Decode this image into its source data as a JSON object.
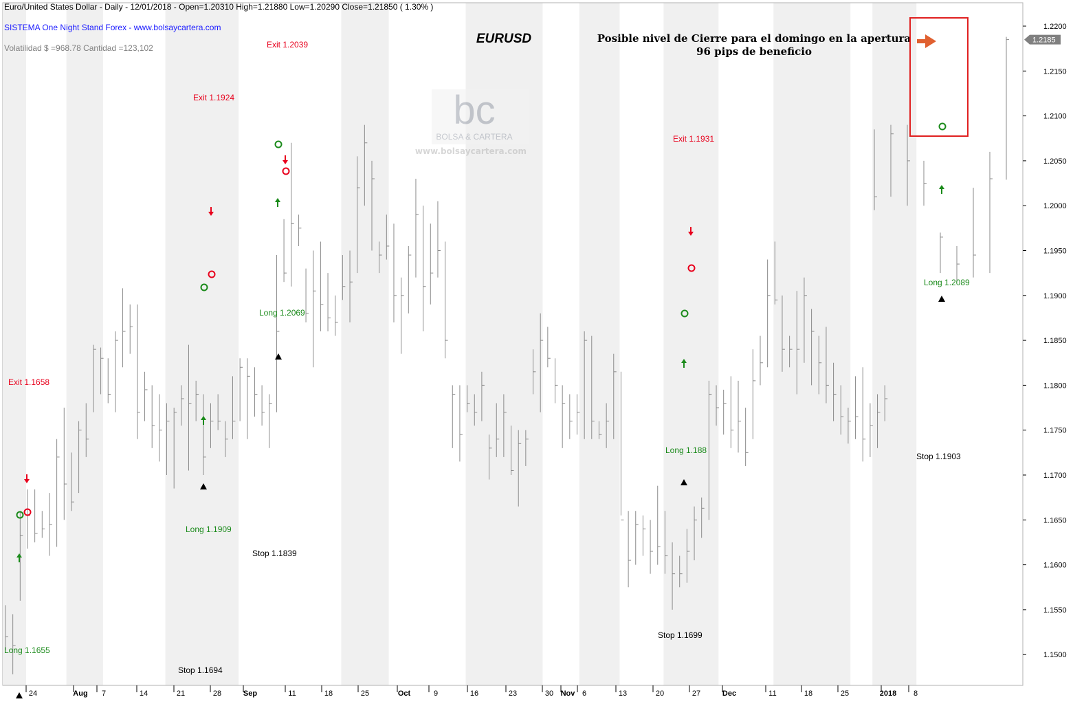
{
  "header": {
    "line1": "Euro/United States Dollar - Daily - 12/01/2018 -   Open=1.20310   High=1.21880   Low=1.20290   Close=1.21850   ( 1.30% )",
    "line2": "SISTEMA One Night Stand Forex  -  www.bolsaycartera.com",
    "line3": "Volatilidad $ =968.78   Cantidad =123,102"
  },
  "watermark": {
    "logo": "bc",
    "name": "BOLSA & CARTERA",
    "url": "www.bolsaycartera.com"
  },
  "colors": {
    "bar": "#8a8a8a",
    "band": "#f0f0f0",
    "long": "#1a8a1a",
    "exit": "#e8001c",
    "trade_line": "#1f1f6e",
    "highlight_box": "#e02020",
    "big_arrow": "#e06030",
    "header_blue": "#1a1aff"
  },
  "chart_data": {
    "type": "ohlc",
    "title": "EURUSD",
    "subtitle_line1": "Posible nivel de Cierre para el domingo en la apertura",
    "subtitle_line2": "96 pips de beneficio",
    "y_range": [
      1.1468,
      1.221
    ],
    "y_ticks": [
      "1.2200",
      "1.2150",
      "1.2100",
      "1.2050",
      "1.2000",
      "1.1950",
      "1.1900",
      "1.1850",
      "1.1800",
      "1.1750",
      "1.1700",
      "1.1650",
      "1.1600",
      "1.1550",
      "1.1500"
    ],
    "last_price_label": "1.2185",
    "x_labels": [
      {
        "i": 6,
        "text": "24"
      },
      {
        "i": 18,
        "text": "Aug"
      },
      {
        "i": 24,
        "text": "7"
      },
      {
        "i": 35,
        "text": "14"
      },
      {
        "i": 46,
        "text": "21"
      },
      {
        "i": 57,
        "text": "28"
      },
      {
        "i": 62,
        "text": "Sep"
      },
      {
        "i": 73,
        "text": "11"
      },
      {
        "i": 84,
        "text": "18"
      },
      {
        "i": 95,
        "text": "25"
      },
      {
        "i": 105,
        "text": "Oct"
      },
      {
        "i": 114,
        "text": "9"
      },
      {
        "i": 125,
        "text": "16"
      },
      {
        "i": 136,
        "text": "23"
      },
      {
        "i": 147,
        "text": "30"
      },
      {
        "i": 152,
        "text": "Nov"
      },
      {
        "i": 157,
        "text": "6"
      },
      {
        "i": 168,
        "text": "13"
      },
      {
        "i": 179,
        "text": "20"
      },
      {
        "i": 190,
        "text": "27"
      },
      {
        "i": 195,
        "text": "Dec"
      },
      {
        "i": 209,
        "text": "11"
      },
      {
        "i": 220,
        "text": "18"
      },
      {
        "i": 231,
        "text": "25"
      },
      {
        "i": 241,
        "text": "2018"
      },
      {
        "i": 249,
        "text": "8"
      }
    ],
    "bands": [
      [
        0,
        6
      ],
      [
        17,
        27
      ],
      [
        44,
        64
      ],
      [
        92,
        105
      ],
      [
        126,
        147
      ],
      [
        157,
        168
      ],
      [
        180,
        195
      ],
      [
        210,
        231
      ],
      [
        237,
        249
      ]
    ],
    "ohlc": [
      {
        "i": 0,
        "h": 1.1555,
        "l": 1.1505,
        "c": 1.152
      },
      {
        "i": 2,
        "h": 1.1545,
        "l": 1.1478,
        "c": 1.151
      },
      {
        "i": 4,
        "h": 1.166,
        "l": 1.156,
        "c": 1.1633
      },
      {
        "i": 6,
        "h": 1.1684,
        "l": 1.1618,
        "c": 1.1655
      },
      {
        "i": 8,
        "h": 1.1684,
        "l": 1.1625,
        "c": 1.1635
      },
      {
        "i": 10,
        "h": 1.166,
        "l": 1.163,
        "c": 1.164
      },
      {
        "i": 12,
        "h": 1.168,
        "l": 1.161,
        "c": 1.1645
      },
      {
        "i": 14,
        "h": 1.174,
        "l": 1.162,
        "c": 1.172
      },
      {
        "i": 16,
        "h": 1.1775,
        "l": 1.165,
        "c": 1.169
      },
      {
        "i": 18,
        "h": 1.1725,
        "l": 1.166,
        "c": 1.167
      },
      {
        "i": 20,
        "h": 1.176,
        "l": 1.168,
        "c": 1.175
      },
      {
        "i": 22,
        "h": 1.178,
        "l": 1.172,
        "c": 1.174
      },
      {
        "i": 24,
        "h": 1.1845,
        "l": 1.177,
        "c": 1.184
      },
      {
        "i": 26,
        "h": 1.1842,
        "l": 1.179,
        "c": 1.183
      },
      {
        "i": 28,
        "h": 1.183,
        "l": 1.178,
        "c": 1.179
      },
      {
        "i": 30,
        "h": 1.186,
        "l": 1.177,
        "c": 1.185
      },
      {
        "i": 32,
        "h": 1.1908,
        "l": 1.182,
        "c": 1.186
      },
      {
        "i": 34,
        "h": 1.189,
        "l": 1.1835,
        "c": 1.1865
      },
      {
        "i": 36,
        "h": 1.189,
        "l": 1.174,
        "c": 1.177
      },
      {
        "i": 38,
        "h": 1.1815,
        "l": 1.176,
        "c": 1.1795
      },
      {
        "i": 40,
        "h": 1.18,
        "l": 1.173,
        "c": 1.1755
      },
      {
        "i": 42,
        "h": 1.179,
        "l": 1.1715,
        "c": 1.175
      },
      {
        "i": 44,
        "h": 1.178,
        "l": 1.17,
        "c": 1.176
      },
      {
        "i": 46,
        "h": 1.1775,
        "l": 1.1685,
        "c": 1.177
      },
      {
        "i": 48,
        "h": 1.18,
        "l": 1.1755,
        "c": 1.1785
      },
      {
        "i": 50,
        "h": 1.1845,
        "l": 1.1705,
        "c": 1.178
      },
      {
        "i": 52,
        "h": 1.1805,
        "l": 1.176,
        "c": 1.179
      },
      {
        "i": 54,
        "h": 1.179,
        "l": 1.17,
        "c": 1.172
      },
      {
        "i": 56,
        "h": 1.178,
        "l": 1.173,
        "c": 1.176
      },
      {
        "i": 58,
        "h": 1.179,
        "l": 1.175,
        "c": 1.176
      },
      {
        "i": 60,
        "h": 1.176,
        "l": 1.172,
        "c": 1.174
      },
      {
        "i": 62,
        "h": 1.181,
        "l": 1.174,
        "c": 1.176
      },
      {
        "i": 64,
        "h": 1.183,
        "l": 1.176,
        "c": 1.182
      },
      {
        "i": 66,
        "h": 1.183,
        "l": 1.174,
        "c": 1.181
      },
      {
        "i": 68,
        "h": 1.182,
        "l": 1.1765,
        "c": 1.179
      },
      {
        "i": 70,
        "h": 1.18,
        "l": 1.1755,
        "c": 1.177
      },
      {
        "i": 72,
        "h": 1.179,
        "l": 1.173,
        "c": 1.178
      },
      {
        "i": 74,
        "h": 1.1945,
        "l": 1.177,
        "c": 1.186
      },
      {
        "i": 76,
        "h": 1.1985,
        "l": 1.1915,
        "c": 1.1925
      },
      {
        "i": 78,
        "h": 1.207,
        "l": 1.191,
        "c": 1.198
      },
      {
        "i": 80,
        "h": 1.199,
        "l": 1.1955,
        "c": 1.1975
      },
      {
        "i": 82,
        "h": 1.193,
        "l": 1.187,
        "c": 1.188
      },
      {
        "i": 84,
        "h": 1.195,
        "l": 1.182,
        "c": 1.1905
      },
      {
        "i": 86,
        "h": 1.196,
        "l": 1.186,
        "c": 1.189
      },
      {
        "i": 88,
        "h": 1.1925,
        "l": 1.186,
        "c": 1.1875
      },
      {
        "i": 90,
        "h": 1.19,
        "l": 1.1855,
        "c": 1.187
      },
      {
        "i": 92,
        "h": 1.1945,
        "l": 1.1895,
        "c": 1.191
      },
      {
        "i": 94,
        "h": 1.195,
        "l": 1.187,
        "c": 1.1915
      },
      {
        "i": 96,
        "h": 1.2055,
        "l": 1.1925,
        "c": 1.202
      },
      {
        "i": 98,
        "h": 1.209,
        "l": 1.2,
        "c": 1.207
      },
      {
        "i": 100,
        "h": 1.205,
        "l": 1.195,
        "c": 1.203
      },
      {
        "i": 102,
        "h": 1.196,
        "l": 1.1925,
        "c": 1.1945
      },
      {
        "i": 104,
        "h": 1.199,
        "l": 1.194,
        "c": 1.1955
      },
      {
        "i": 106,
        "h": 1.198,
        "l": 1.187,
        "c": 1.19
      },
      {
        "i": 108,
        "h": 1.192,
        "l": 1.1835,
        "c": 1.19
      },
      {
        "i": 110,
        "h": 1.1955,
        "l": 1.188,
        "c": 1.1945
      },
      {
        "i": 112,
        "h": 1.203,
        "l": 1.192,
        "c": 1.199
      },
      {
        "i": 114,
        "h": 1.2,
        "l": 1.186,
        "c": 1.191
      },
      {
        "i": 116,
        "h": 1.198,
        "l": 1.189,
        "c": 1.1925
      },
      {
        "i": 118,
        "h": 1.2005,
        "l": 1.192,
        "c": 1.195
      },
      {
        "i": 120,
        "h": 1.196,
        "l": 1.183,
        "c": 1.185
      },
      {
        "i": 122,
        "h": 1.18,
        "l": 1.173,
        "c": 1.179
      },
      {
        "i": 124,
        "h": 1.18,
        "l": 1.1715,
        "c": 1.1745
      },
      {
        "i": 126,
        "h": 1.18,
        "l": 1.177,
        "c": 1.178
      },
      {
        "i": 128,
        "h": 1.179,
        "l": 1.1755,
        "c": 1.177
      },
      {
        "i": 130,
        "h": 1.1815,
        "l": 1.176,
        "c": 1.18
      },
      {
        "i": 132,
        "h": 1.1745,
        "l": 1.1695,
        "c": 1.173
      },
      {
        "i": 134,
        "h": 1.178,
        "l": 1.172,
        "c": 1.174
      },
      {
        "i": 136,
        "h": 1.179,
        "l": 1.172,
        "c": 1.177
      },
      {
        "i": 138,
        "h": 1.1755,
        "l": 1.17,
        "c": 1.1705
      },
      {
        "i": 140,
        "h": 1.175,
        "l": 1.1665,
        "c": 1.1735
      },
      {
        "i": 142,
        "h": 1.175,
        "l": 1.171,
        "c": 1.174
      },
      {
        "i": 144,
        "h": 1.184,
        "l": 1.179,
        "c": 1.1815
      },
      {
        "i": 146,
        "h": 1.188,
        "l": 1.177,
        "c": 1.185
      },
      {
        "i": 148,
        "h": 1.1865,
        "l": 1.182,
        "c": 1.183
      },
      {
        "i": 150,
        "h": 1.183,
        "l": 1.178,
        "c": 1.18
      },
      {
        "i": 152,
        "h": 1.18,
        "l": 1.173,
        "c": 1.178
      },
      {
        "i": 154,
        "h": 1.179,
        "l": 1.174,
        "c": 1.176
      },
      {
        "i": 156,
        "h": 1.179,
        "l": 1.1745,
        "c": 1.177
      },
      {
        "i": 158,
        "h": 1.186,
        "l": 1.174,
        "c": 1.185
      },
      {
        "i": 160,
        "h": 1.1855,
        "l": 1.174,
        "c": 1.176
      },
      {
        "i": 162,
        "h": 1.176,
        "l": 1.174,
        "c": 1.1745
      },
      {
        "i": 164,
        "h": 1.178,
        "l": 1.173,
        "c": 1.176
      },
      {
        "i": 166,
        "h": 1.1835,
        "l": 1.174,
        "c": 1.1815
      },
      {
        "i": 168,
        "h": 1.1815,
        "l": 1.1655,
        "c": 1.165
      },
      {
        "i": 170,
        "h": 1.166,
        "l": 1.1575,
        "c": 1.1605
      },
      {
        "i": 172,
        "h": 1.166,
        "l": 1.16,
        "c": 1.1645
      },
      {
        "i": 174,
        "h": 1.1655,
        "l": 1.161,
        "c": 1.164
      },
      {
        "i": 176,
        "h": 1.165,
        "l": 1.159,
        "c": 1.1615
      },
      {
        "i": 178,
        "h": 1.1688,
        "l": 1.16,
        "c": 1.162
      },
      {
        "i": 180,
        "h": 1.166,
        "l": 1.159,
        "c": 1.161
      },
      {
        "i": 182,
        "h": 1.1625,
        "l": 1.155,
        "c": 1.159
      },
      {
        "i": 184,
        "h": 1.161,
        "l": 1.1575,
        "c": 1.159
      },
      {
        "i": 186,
        "h": 1.164,
        "l": 1.158,
        "c": 1.1615
      },
      {
        "i": 188,
        "h": 1.1665,
        "l": 1.1605,
        "c": 1.165
      },
      {
        "i": 190,
        "h": 1.1675,
        "l": 1.163,
        "c": 1.1663
      },
      {
        "i": 192,
        "h": 1.1805,
        "l": 1.165,
        "c": 1.179
      },
      {
        "i": 194,
        "h": 1.18,
        "l": 1.1755,
        "c": 1.1775
      },
      {
        "i": 196,
        "h": 1.1795,
        "l": 1.1745,
        "c": 1.178
      },
      {
        "i": 198,
        "h": 1.181,
        "l": 1.173,
        "c": 1.175
      },
      {
        "i": 200,
        "h": 1.1805,
        "l": 1.1725,
        "c": 1.176
      },
      {
        "i": 202,
        "h": 1.1775,
        "l": 1.171,
        "c": 1.1725
      },
      {
        "i": 204,
        "h": 1.184,
        "l": 1.174,
        "c": 1.1805
      },
      {
        "i": 206,
        "h": 1.1855,
        "l": 1.18,
        "c": 1.1825
      },
      {
        "i": 208,
        "h": 1.194,
        "l": 1.182,
        "c": 1.19
      },
      {
        "i": 210,
        "h": 1.196,
        "l": 1.189,
        "c": 1.1895
      },
      {
        "i": 212,
        "h": 1.19,
        "l": 1.1815,
        "c": 1.184
      },
      {
        "i": 214,
        "h": 1.1855,
        "l": 1.182,
        "c": 1.184
      },
      {
        "i": 216,
        "h": 1.1905,
        "l": 1.179,
        "c": 1.184
      },
      {
        "i": 218,
        "h": 1.192,
        "l": 1.1825,
        "c": 1.19
      },
      {
        "i": 220,
        "h": 1.1885,
        "l": 1.18,
        "c": 1.186
      },
      {
        "i": 222,
        "h": 1.1855,
        "l": 1.179,
        "c": 1.1825
      },
      {
        "i": 224,
        "h": 1.1865,
        "l": 1.178,
        "c": 1.18
      },
      {
        "i": 226,
        "h": 1.1825,
        "l": 1.176,
        "c": 1.179
      },
      {
        "i": 228,
        "h": 1.18,
        "l": 1.1745,
        "c": 1.1765
      },
      {
        "i": 230,
        "h": 1.1775,
        "l": 1.1735,
        "c": 1.176
      },
      {
        "i": 232,
        "h": 1.181,
        "l": 1.174,
        "c": 1.1765
      },
      {
        "i": 234,
        "h": 1.182,
        "l": 1.1715,
        "c": 1.174
      },
      {
        "i": 236,
        "h": 1.178,
        "l": 1.172,
        "c": 1.1755
      },
      {
        "i": 238,
        "h": 1.179,
        "l": 1.173,
        "c": 1.177
      },
      {
        "i": 240,
        "h": 1.18,
        "l": 1.176,
        "c": 1.1785
      }
    ],
    "signals": {
      "long": [
        {
          "i": 5,
          "price": 1.1655,
          "label": "Long 1.1655"
        },
        {
          "i": 55,
          "price": 1.1909,
          "label": "Long 1.1909"
        },
        {
          "i": 75,
          "price": 1.2069,
          "label": "Long 1.2069"
        },
        {
          "i": 185,
          "price": 1.188,
          "label": "Long 1.188"
        },
        {
          "i": 252,
          "price": 1.2089,
          "label": "Long 1.2089"
        }
      ],
      "exit": [
        {
          "i": 7,
          "price": 1.1658,
          "label": "Exit 1.1658"
        },
        {
          "i": 57,
          "price": 1.1924,
          "label": "Exit 1.1924"
        },
        {
          "i": 77,
          "price": 1.2039,
          "label": "Exit 1.2039"
        },
        {
          "i": 187,
          "price": 1.1931,
          "label": "Exit 1.1931"
        }
      ],
      "stop": [
        {
          "price": 1.1694,
          "label": "Stop 1.1694"
        },
        {
          "price": 1.1839,
          "label": "Stop 1.1839"
        },
        {
          "price": 1.1699,
          "label": "Stop 1.1699"
        },
        {
          "price": 1.1903,
          "label": "Stop 1.1903"
        }
      ]
    }
  }
}
